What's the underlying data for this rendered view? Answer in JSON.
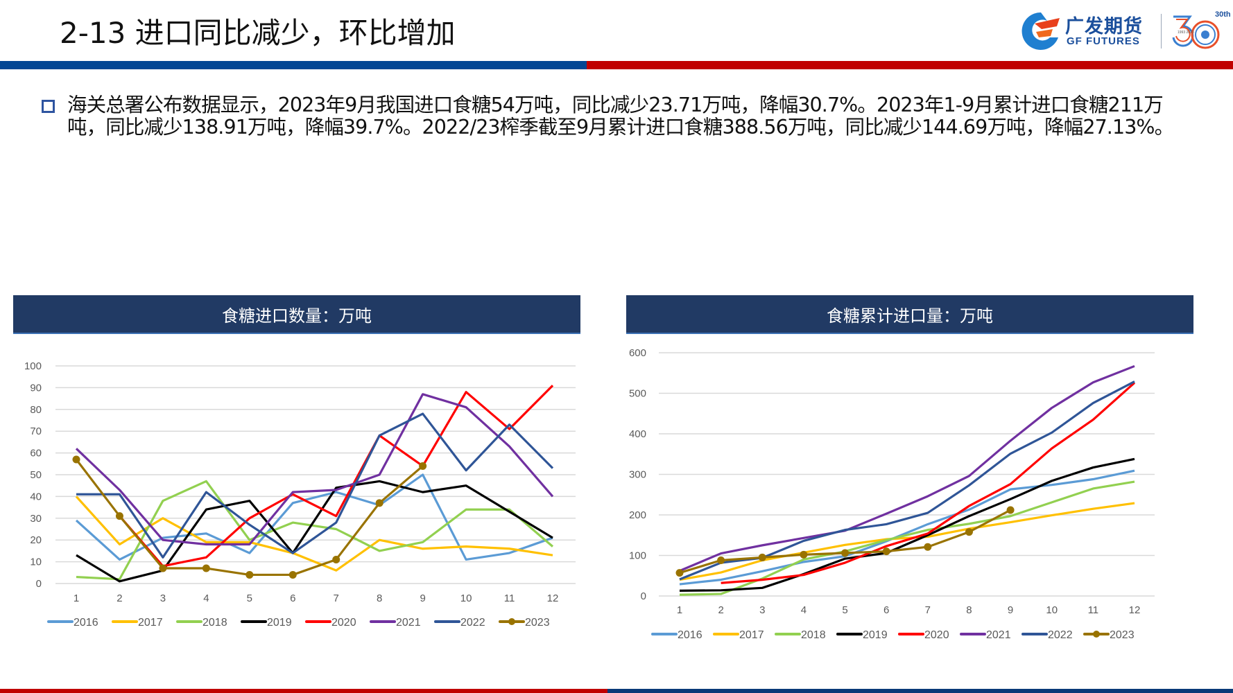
{
  "title": "2-13 进口同比减少，环比增加",
  "logo": {
    "cn": "广发期货",
    "en": "GF FUTURES",
    "anniversary": "30th",
    "years": "1993 2023"
  },
  "paragraph": {
    "icon": "hollow-square-bullet-icon",
    "text": "海关总署公布数据显示，2023年9月我国进口食糖54万吨，同比减少23.71万吨，降幅30.7%。2023年1-9月累计进口食糖211万吨，同比减少138.91万吨，降幅39.7%。2022/23榨季截至9月累计进口食糖388.56万吨，同比减少144.69万吨，降幅27.13%。"
  },
  "colors": {
    "2016": "#5b9bd5",
    "2017": "#ffc000",
    "2018": "#92d050",
    "2019": "#000000",
    "2020": "#ff0000",
    "2021": "#7030a0",
    "2022": "#2f5597",
    "2023": "#997300",
    "header_bg": "#213a64",
    "band_blue": "#034694",
    "band_red": "#c00000"
  },
  "chart_data": [
    {
      "type": "line",
      "title": "食糖进口数量：万吨",
      "xlabel": "",
      "ylabel": "",
      "ylim": [
        0,
        100
      ],
      "yticks": [
        "0",
        "10",
        "20",
        "30",
        "40",
        "50",
        "60",
        "70",
        "80",
        "90",
        "100"
      ],
      "categories": [
        "1",
        "2",
        "3",
        "4",
        "5",
        "6",
        "7",
        "8",
        "9",
        "10",
        "11",
        "12"
      ],
      "grid": true,
      "legend": "bottom",
      "series": [
        {
          "name": "2016",
          "values": [
            29,
            11,
            21,
            23,
            14,
            37,
            42,
            36,
            50,
            11,
            14,
            21
          ]
        },
        {
          "name": "2017",
          "values": [
            40,
            18,
            30,
            19,
            19,
            14,
            6,
            20,
            16,
            17,
            16,
            13
          ]
        },
        {
          "name": "2018",
          "values": [
            3,
            2,
            38,
            47,
            20,
            28,
            25,
            15,
            19,
            34,
            34,
            17
          ]
        },
        {
          "name": "2019",
          "values": [
            13,
            1,
            6,
            34,
            38,
            14,
            44,
            47,
            42,
            45,
            33,
            21
          ]
        },
        {
          "name": "2020",
          "values": [
            null,
            31,
            8,
            12,
            30,
            41,
            31,
            68,
            54,
            88,
            71,
            91
          ]
        },
        {
          "name": "2021",
          "values": [
            62,
            43,
            20,
            18,
            18,
            42,
            43,
            50,
            87,
            81,
            63,
            40
          ]
        },
        {
          "name": "2022",
          "values": [
            41,
            41,
            12,
            42,
            27,
            14,
            28,
            68,
            78,
            52,
            73,
            53
          ]
        },
        {
          "name": "2023",
          "values": [
            57,
            31,
            7,
            7,
            4,
            4,
            11,
            37,
            54,
            null,
            null,
            null
          ],
          "markers": true
        }
      ]
    },
    {
      "type": "line",
      "title": "食糖累计进口量：万吨",
      "xlabel": "",
      "ylabel": "",
      "ylim": [
        0,
        600
      ],
      "yticks": [
        "0",
        "100",
        "200",
        "300",
        "400",
        "500",
        "600"
      ],
      "categories": [
        "1",
        "2",
        "3",
        "4",
        "5",
        "6",
        "7",
        "8",
        "9",
        "10",
        "11",
        "12"
      ],
      "grid": true,
      "legend": "bottom",
      "series": [
        {
          "name": "2016",
          "values": [
            29,
            40,
            61,
            84,
            98,
            135,
            177,
            213,
            263,
            274,
            288,
            309
          ]
        },
        {
          "name": "2017",
          "values": [
            40,
            58,
            88,
            107,
            126,
            140,
            146,
            166,
            182,
            199,
            215,
            229
          ]
        },
        {
          "name": "2018",
          "values": [
            3,
            5,
            43,
            90,
            110,
            138,
            163,
            178,
            197,
            231,
            265,
            282
          ]
        },
        {
          "name": "2019",
          "values": [
            13,
            14,
            20,
            54,
            92,
            106,
            150,
            197,
            239,
            284,
            317,
            338
          ]
        },
        {
          "name": "2020",
          "values": [
            null,
            32,
            40,
            52,
            82,
            123,
            154,
            222,
            276,
            364,
            435,
            526
          ]
        },
        {
          "name": "2021",
          "values": [
            62,
            105,
            125,
            143,
            161,
            203,
            246,
            296,
            383,
            464,
            527,
            567
          ]
        },
        {
          "name": "2022",
          "values": [
            41,
            82,
            94,
            136,
            163,
            177,
            205,
            273,
            351,
            403,
            476,
            529
          ]
        },
        {
          "name": "2023",
          "values": [
            57,
            88,
            95,
            102,
            106,
            110,
            121,
            158,
            212,
            null,
            null,
            null
          ],
          "markers": true
        }
      ]
    }
  ]
}
